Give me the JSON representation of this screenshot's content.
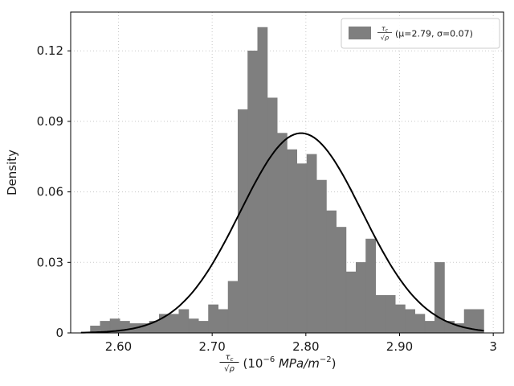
{
  "chart_data": {
    "type": "histogram",
    "title": "",
    "ylabel": "Density",
    "xlabel_parts": {
      "frac_num_tau": "τ",
      "frac_num_sub": "c",
      "frac_den": "√ρ",
      "unit_open": "(10",
      "unit_exp1": "−6",
      "unit_mid": " MPa/m",
      "unit_exp2": "−2",
      "unit_close": ")"
    },
    "xlim": [
      2.549,
      3.011
    ],
    "ylim": [
      0,
      0.1365
    ],
    "xticks": [
      2.6,
      2.7,
      2.8,
      2.9,
      3.0
    ],
    "xtick_labels": [
      "2.60",
      "2.70",
      "2.80",
      "2.90",
      "3"
    ],
    "yticks": [
      0,
      0.03,
      0.06,
      0.09,
      0.12
    ],
    "ytick_labels": [
      "0",
      "0.03",
      "0.06",
      "0.09",
      "0.12"
    ],
    "grid": true,
    "legend_position": "upper right",
    "colors": {
      "bar": "#7f7f7f",
      "curve": "#000000",
      "grid": "#c8c8c8",
      "spine": "#000000",
      "text": "#1a1a1a",
      "legend_border": "#cccccc",
      "legend_bg": "#ffffff"
    },
    "bins": {
      "start": 2.57,
      "width": 0.0105,
      "heights": [
        0.003,
        0.005,
        0.006,
        0.005,
        0.004,
        0.004,
        0.005,
        0.008,
        0.008,
        0.01,
        0.006,
        0.005,
        0.012,
        0.01,
        0.022,
        0.095,
        0.12,
        0.13,
        0.1,
        0.085,
        0.078,
        0.072,
        0.076,
        0.065,
        0.052,
        0.045,
        0.026,
        0.03,
        0.04,
        0.016,
        0.016,
        0.012,
        0.01,
        0.008,
        0.005,
        0.03,
        0.005,
        0.004,
        0.01,
        0.01
      ]
    },
    "fit_curve": {
      "shape": "normal",
      "mu": 2.795,
      "sigma": 0.065,
      "peak_density": 0.085,
      "label_mu": "2.79",
      "label_sigma": "0.07"
    },
    "legend": {
      "frac_num_tau": "τ",
      "frac_num_sub": "c",
      "frac_den": "√ρ",
      "suffix": "(μ=2.79, σ=0.07)"
    }
  }
}
